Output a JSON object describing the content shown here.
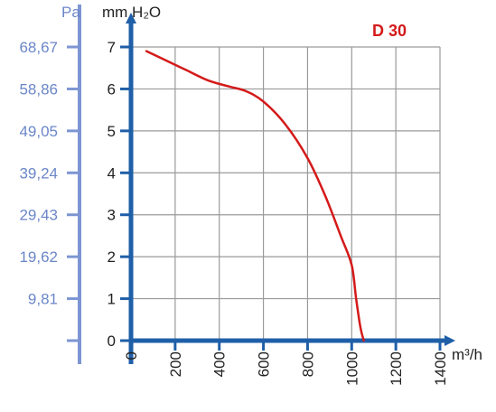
{
  "colors": {
    "axis": "#1f5fa8",
    "pa_axis": "#7d96d3",
    "grid": "#9a9a9a",
    "curve": "#d41a1a",
    "text_blue": "#6b86c8",
    "text_dark": "#222222"
  },
  "chart_data": {
    "type": "line",
    "title": "D 30",
    "xlabel": "m³/h",
    "ylabel": "mm H₂O",
    "ylabel_left": "Pa",
    "xlim": [
      0,
      1400
    ],
    "ylim": [
      0,
      7
    ],
    "grid": true,
    "x_ticks": [
      "0",
      "200",
      "400",
      "600",
      "800",
      "1000",
      "1200",
      "1400"
    ],
    "y_ticks": [
      "0",
      "1",
      "2",
      "3",
      "4",
      "5",
      "6",
      "7"
    ],
    "pa_ticks": [
      "",
      "9,81",
      "19,62",
      "29,43",
      "39,24",
      "49,05",
      "58,86",
      "68,67"
    ],
    "series": [
      {
        "points": [
          [
            70,
            6.9
          ],
          [
            150,
            6.7
          ],
          [
            250,
            6.45
          ],
          [
            350,
            6.2
          ],
          [
            450,
            6.05
          ],
          [
            520,
            5.95
          ],
          [
            600,
            5.7
          ],
          [
            700,
            5.15
          ],
          [
            800,
            4.35
          ],
          [
            880,
            3.45
          ],
          [
            950,
            2.5
          ],
          [
            1000,
            1.8
          ],
          [
            1020,
            1.0
          ],
          [
            1040,
            0.3
          ],
          [
            1055,
            0.0
          ]
        ]
      }
    ]
  }
}
